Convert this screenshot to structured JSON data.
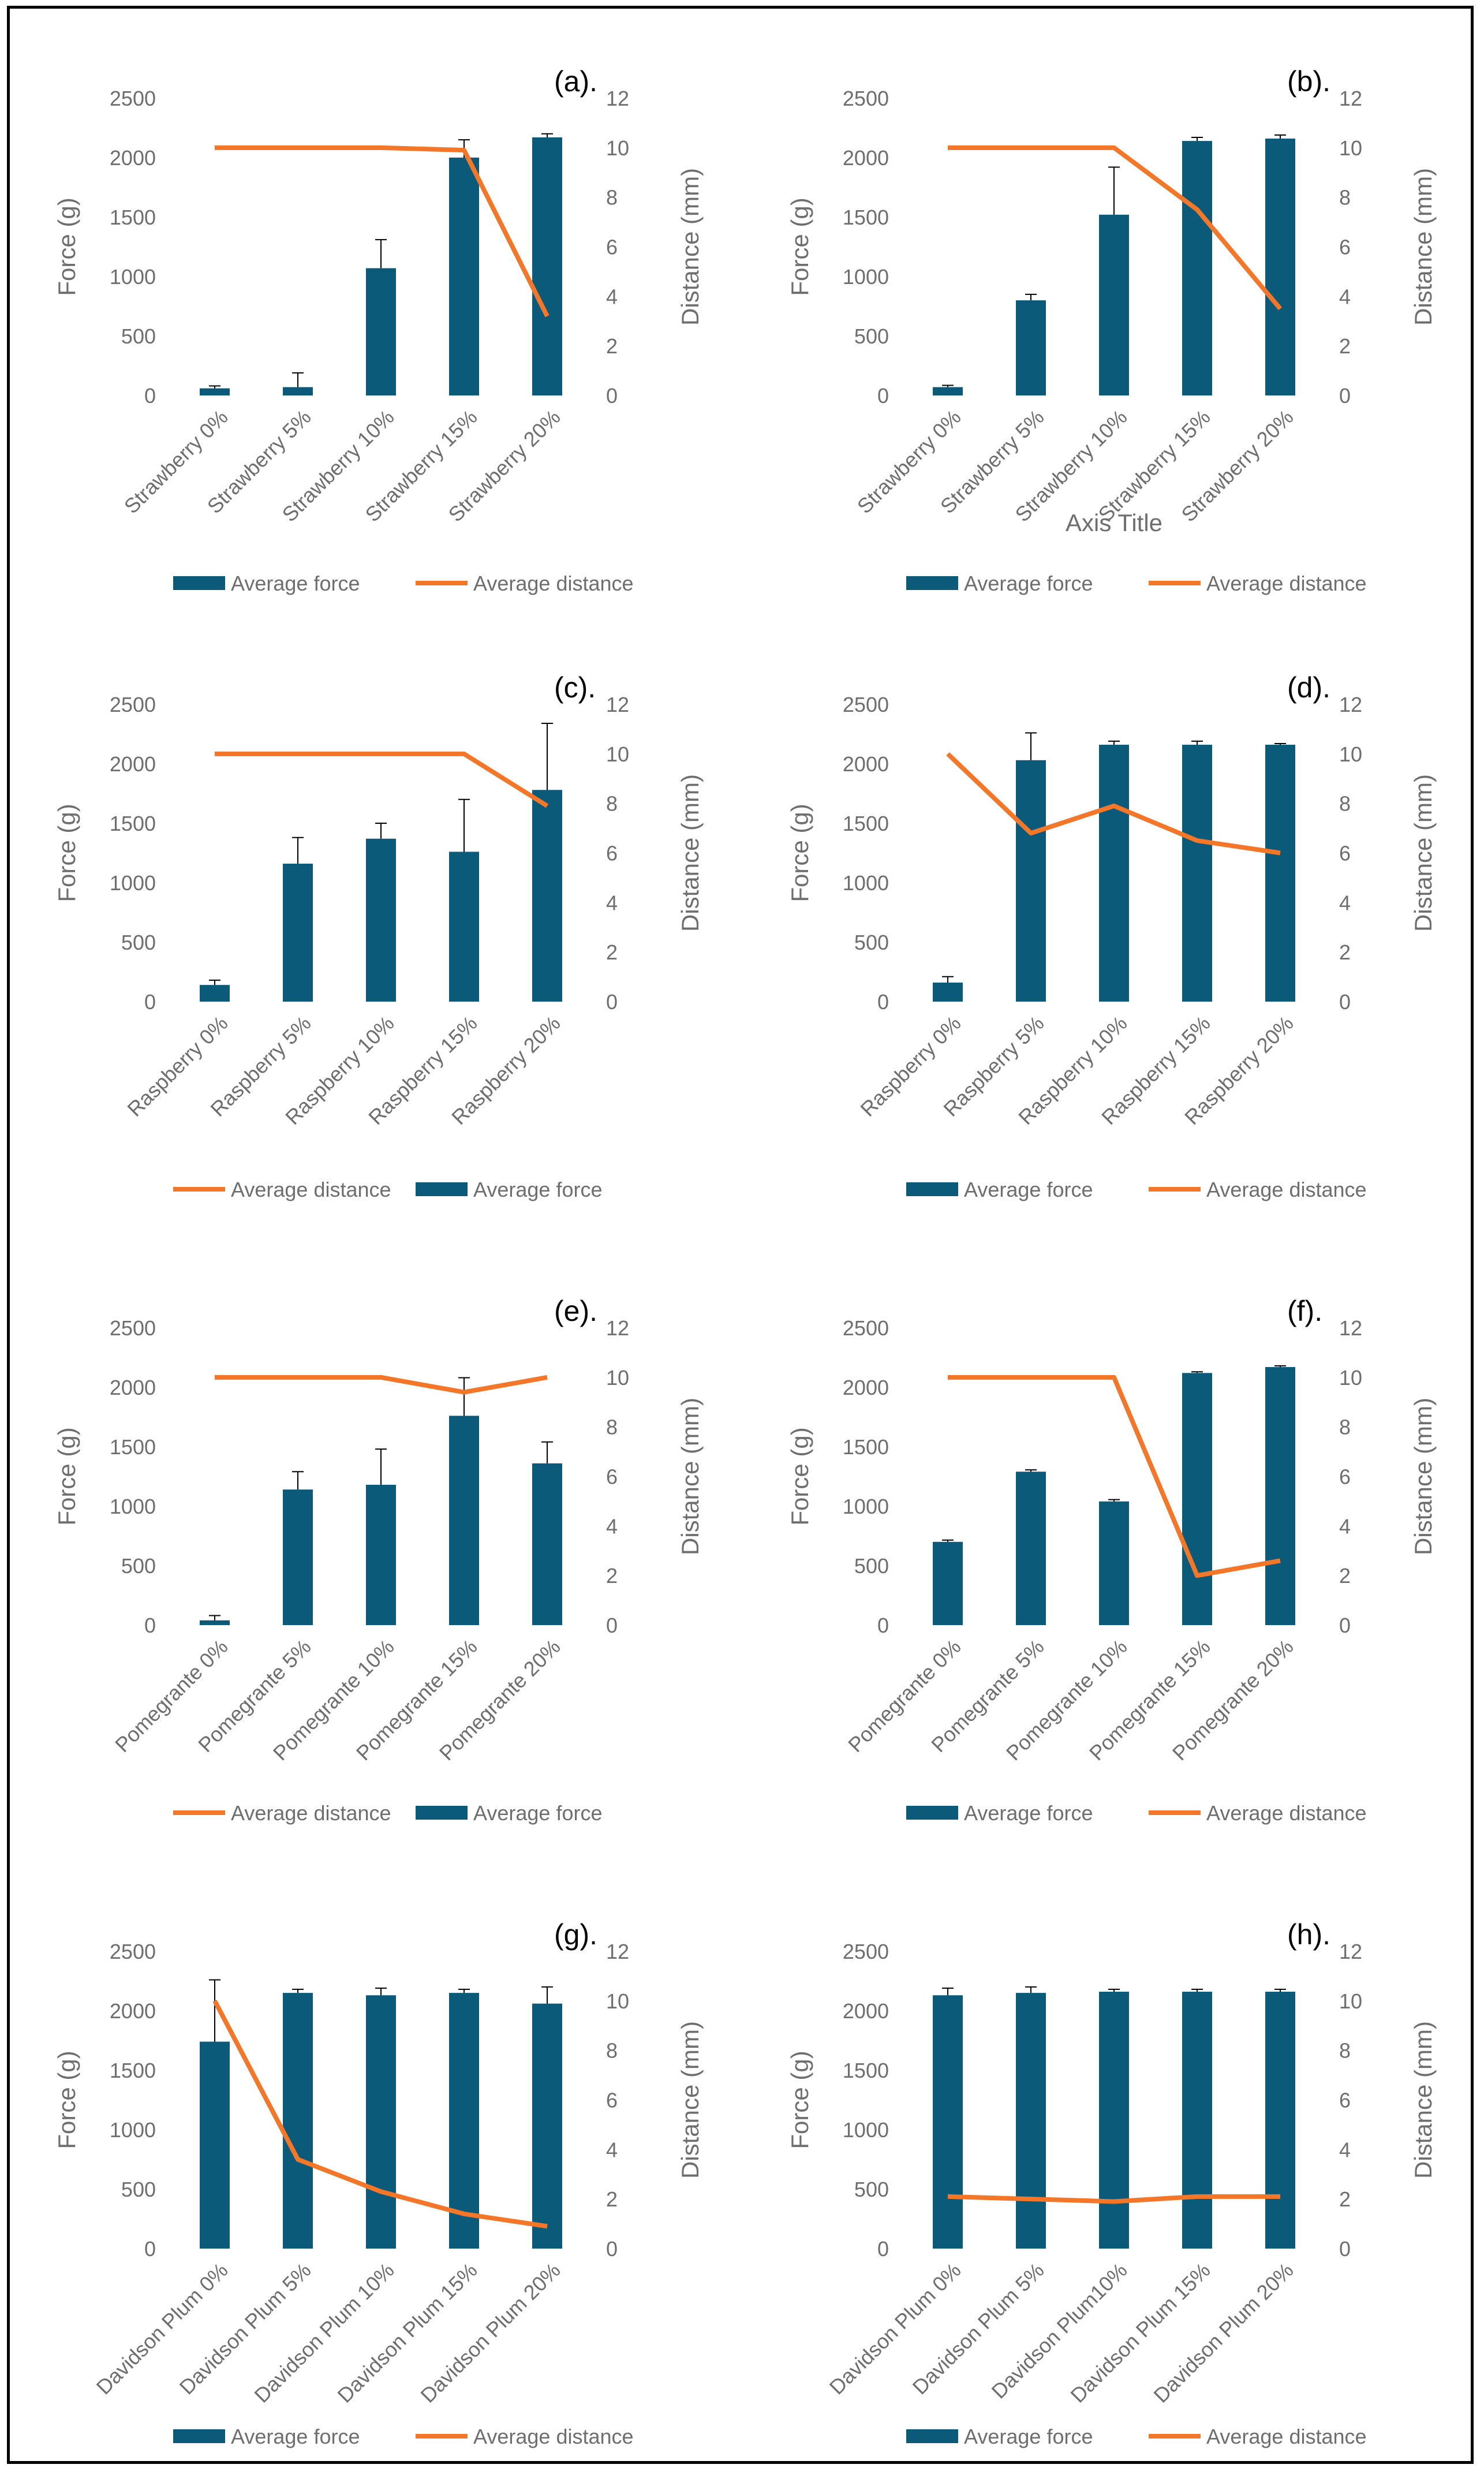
{
  "colors": {
    "bar": "#0b5a7a",
    "line": "#f47628",
    "text": "#6e6e6e",
    "errorbar": "#000000"
  },
  "chart_data": [
    {
      "type": "bar+line",
      "panel_label": "(a).",
      "categories": [
        "Strawberry 0%",
        "Strawberry 5%",
        "Strawberry 10%",
        "Strawberry 15%",
        "Strawberry 20%"
      ],
      "ylabel_left": "Force (g)",
      "ylabel_right": "Distance (mm)",
      "xlabel": "",
      "ylim_left": [
        0,
        2500
      ],
      "ylim_right": [
        0,
        12
      ],
      "yticks_left": [
        "0",
        "500",
        "1000",
        "1500",
        "2000",
        "2500"
      ],
      "yticks_right": [
        "0",
        "2",
        "4",
        "6",
        "8",
        "10",
        "12"
      ],
      "bars": {
        "name": "Average force",
        "values": [
          60,
          70,
          1070,
          2000,
          2170
        ],
        "errors": [
          20,
          120,
          240,
          150,
          30
        ]
      },
      "line": {
        "name": "Average distance",
        "values": [
          10,
          10,
          10,
          9.9,
          3.2
        ]
      },
      "legend": [
        "Average force",
        "Average distance"
      ]
    },
    {
      "type": "bar+line",
      "panel_label": "(b).",
      "categories": [
        "Strawberry 0%",
        "Strawberry 5%",
        "Strawberry 10%",
        "Strawberry 15%",
        "Strawberry 20%"
      ],
      "ylabel_left": "Force (g)",
      "ylabel_right": "Distance (mm)",
      "xlabel": "Axis Title",
      "ylim_left": [
        0,
        2500
      ],
      "ylim_right": [
        0,
        12
      ],
      "yticks_left": [
        "0",
        "500",
        "1000",
        "1500",
        "2000",
        "2500"
      ],
      "yticks_right": [
        "0",
        "2",
        "4",
        "6",
        "8",
        "10",
        "12"
      ],
      "bars": {
        "name": "Average force",
        "values": [
          70,
          800,
          1520,
          2140,
          2160
        ],
        "errors": [
          15,
          50,
          400,
          30,
          30
        ]
      },
      "line": {
        "name": "Average distance",
        "values": [
          10,
          10,
          10,
          7.5,
          3.5
        ]
      },
      "legend": [
        "Average force",
        "Average distance"
      ]
    },
    {
      "type": "bar+line",
      "panel_label": "(c).",
      "categories": [
        "Raspberry 0%",
        "Raspberry 5%",
        "Raspberry 10%",
        "Raspberry 15%",
        "Raspberry 20%"
      ],
      "ylabel_left": "Force (g)",
      "ylabel_right": "Distance (mm)",
      "xlabel": "",
      "ylim_left": [
        0,
        2500
      ],
      "ylim_right": [
        0,
        12
      ],
      "yticks_left": [
        "0",
        "500",
        "1000",
        "1500",
        "2000",
        "2500"
      ],
      "yticks_right": [
        "0",
        "2",
        "4",
        "6",
        "8",
        "10",
        "12"
      ],
      "bars": {
        "name": "Average force",
        "values": [
          140,
          1160,
          1370,
          1260,
          1780
        ],
        "errors": [
          40,
          220,
          130,
          440,
          560
        ]
      },
      "line": {
        "name": "Average distance",
        "values": [
          10,
          10,
          10,
          10,
          7.9
        ]
      },
      "legend": [
        "Average distance",
        "Average force"
      ]
    },
    {
      "type": "bar+line",
      "panel_label": "(d).",
      "categories": [
        "Raspberry 0%",
        "Raspberry 5%",
        "Raspberry 10%",
        "Raspberry 15%",
        "Raspberry 20%"
      ],
      "ylabel_left": "Force (g)",
      "ylabel_right": "Distance (mm)",
      "xlabel": "",
      "ylim_left": [
        0,
        2500
      ],
      "ylim_right": [
        0,
        12
      ],
      "yticks_left": [
        "0",
        "500",
        "1000",
        "1500",
        "2000",
        "2500"
      ],
      "yticks_right": [
        "0",
        "2",
        "4",
        "6",
        "8",
        "10",
        "12"
      ],
      "bars": {
        "name": "Average force",
        "values": [
          160,
          2030,
          2160,
          2160,
          2160
        ],
        "errors": [
          50,
          230,
          30,
          30,
          10
        ]
      },
      "line": {
        "name": "Average distance",
        "values": [
          10,
          6.8,
          7.9,
          6.5,
          6
        ]
      },
      "legend": [
        "Average force",
        "Average distance"
      ]
    },
    {
      "type": "bar+line",
      "panel_label": "(e).",
      "categories": [
        "Pomegrante 0%",
        "Pomegrante 5%",
        "Pomegrante 10%",
        "Pomegrante 15%",
        "Pomegrante 20%"
      ],
      "ylabel_left": "Force (g)",
      "ylabel_right": "Distance (mm)",
      "xlabel": "",
      "ylim_left": [
        0,
        2500
      ],
      "ylim_right": [
        0,
        12
      ],
      "yticks_left": [
        "0",
        "500",
        "1000",
        "1500",
        "2000",
        "2500"
      ],
      "yticks_right": [
        "0",
        "2",
        "4",
        "6",
        "8",
        "10",
        "12"
      ],
      "bars": {
        "name": "Average force",
        "values": [
          40,
          1140,
          1180,
          1760,
          1360
        ],
        "errors": [
          40,
          150,
          300,
          320,
          180
        ]
      },
      "line": {
        "name": "Average distance",
        "values": [
          10,
          10,
          10,
          9.4,
          10
        ]
      },
      "legend": [
        "Average distance",
        "Average force"
      ]
    },
    {
      "type": "bar+line",
      "panel_label": "(f).",
      "categories": [
        "Pomegrante 0%",
        "Pomegrante 5%",
        "Pomegrante 10%",
        "Pomegrante 15%",
        "Pomegrante 20%"
      ],
      "ylabel_left": "Force (g)",
      "ylabel_right": "Distance (mm)",
      "xlabel": "",
      "ylim_left": [
        0,
        2500
      ],
      "ylim_right": [
        0,
        12
      ],
      "yticks_left": [
        "0",
        "500",
        "1000",
        "1500",
        "2000",
        "2500"
      ],
      "yticks_right": [
        "0",
        "2",
        "4",
        "6",
        "8",
        "10",
        "12"
      ],
      "bars": {
        "name": "Average force",
        "values": [
          700,
          1290,
          1040,
          2120,
          2170
        ],
        "errors": [
          15,
          15,
          15,
          10,
          10
        ]
      },
      "line": {
        "name": "Average distance",
        "values": [
          10,
          10,
          10,
          2,
          2.6
        ]
      },
      "legend": [
        "Average force",
        "Average distance"
      ]
    },
    {
      "type": "bar+line",
      "panel_label": "(g).",
      "categories": [
        "Davidson Plum 0%",
        "Davidson Plum 5%",
        "Davidson Plum 10%",
        "Davidson Plum 15%",
        "Davidson Plum 20%"
      ],
      "ylabel_left": "Force (g)",
      "ylabel_right": "Distance (mm)",
      "xlabel": "",
      "ylim_left": [
        0,
        2500
      ],
      "ylim_right": [
        0,
        12
      ],
      "yticks_left": [
        "0",
        "500",
        "1000",
        "1500",
        "2000",
        "2500"
      ],
      "yticks_right": [
        "0",
        "2",
        "4",
        "6",
        "8",
        "10",
        "12"
      ],
      "bars": {
        "name": "Average force",
        "values": [
          1740,
          2150,
          2130,
          2150,
          2060
        ],
        "errors": [
          520,
          30,
          60,
          30,
          140
        ]
      },
      "line": {
        "name": "Average distance",
        "values": [
          10,
          3.6,
          2.3,
          1.4,
          0.9
        ]
      },
      "legend": [
        "Average force",
        "Average distance"
      ]
    },
    {
      "type": "bar+line",
      "panel_label": "(h).",
      "categories": [
        "Davidson Plum 0%",
        "Davidson Plum 5%",
        "Davidson Plum10%",
        "Davidson Plum 15%",
        "Davidson Plum 20%"
      ],
      "ylabel_left": "Force (g)",
      "ylabel_right": "Distance (mm)",
      "xlabel": "",
      "ylim_left": [
        0,
        2500
      ],
      "ylim_right": [
        0,
        12
      ],
      "yticks_left": [
        "0",
        "500",
        "1000",
        "1500",
        "2000",
        "2500"
      ],
      "yticks_right": [
        "0",
        "2",
        "4",
        "6",
        "8",
        "10",
        "12"
      ],
      "bars": {
        "name": "Average force",
        "values": [
          2130,
          2150,
          2160,
          2160,
          2160
        ],
        "errors": [
          60,
          50,
          20,
          20,
          20
        ]
      },
      "line": {
        "name": "Average distance",
        "values": [
          2.1,
          2,
          1.9,
          2.1,
          2.1
        ]
      },
      "legend": [
        "Average force",
        "Average distance"
      ]
    }
  ]
}
